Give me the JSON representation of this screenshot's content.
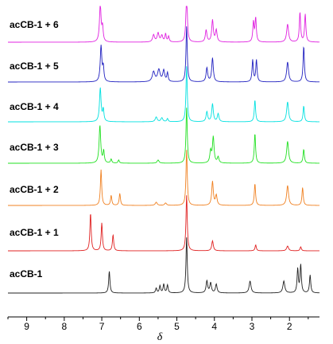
{
  "chart_data": {
    "type": "line",
    "title": "",
    "xlabel": "δ",
    "ylabel": "",
    "x_reversed": true,
    "xlim": [
      9.5,
      1.2
    ],
    "x_ticks": [
      "9",
      "8",
      "7",
      "6",
      "5",
      "4",
      "3",
      "2"
    ],
    "x_tick_values": [
      9,
      8,
      7,
      6,
      5,
      4,
      3,
      2
    ],
    "grid": false,
    "series": [
      {
        "name": "acCB-1 + 6",
        "color": "#e020e0",
        "peaks": [
          {
            "ppm": 7.04,
            "intensity": 0.95,
            "width": 0.025
          },
          {
            "ppm": 6.98,
            "intensity": 0.35,
            "width": 0.02
          },
          {
            "ppm": 5.62,
            "intensity": 0.18,
            "width": 0.03
          },
          {
            "ppm": 5.5,
            "intensity": 0.22,
            "width": 0.03
          },
          {
            "ppm": 5.4,
            "intensity": 0.16,
            "width": 0.03
          },
          {
            "ppm": 5.3,
            "intensity": 0.2,
            "width": 0.02
          },
          {
            "ppm": 5.22,
            "intensity": 0.14,
            "width": 0.02
          },
          {
            "ppm": 4.74,
            "intensity": 1.4,
            "width": 0.02
          },
          {
            "ppm": 4.22,
            "intensity": 0.3,
            "width": 0.025
          },
          {
            "ppm": 4.05,
            "intensity": 0.55,
            "width": 0.025
          },
          {
            "ppm": 3.95,
            "intensity": 0.3,
            "width": 0.025
          },
          {
            "ppm": 2.96,
            "intensity": 0.5,
            "width": 0.02
          },
          {
            "ppm": 2.9,
            "intensity": 0.6,
            "width": 0.02
          },
          {
            "ppm": 2.05,
            "intensity": 0.45,
            "width": 0.03
          },
          {
            "ppm": 1.72,
            "intensity": 0.75,
            "width": 0.02
          },
          {
            "ppm": 1.58,
            "intensity": 0.7,
            "width": 0.02
          }
        ]
      },
      {
        "name": "acCB-1 + 5",
        "color": "#2020c0",
        "peaks": [
          {
            "ppm": 7.02,
            "intensity": 0.9,
            "width": 0.025
          },
          {
            "ppm": 6.96,
            "intensity": 0.35,
            "width": 0.02
          },
          {
            "ppm": 5.62,
            "intensity": 0.25,
            "width": 0.04
          },
          {
            "ppm": 5.48,
            "intensity": 0.3,
            "width": 0.04
          },
          {
            "ppm": 5.35,
            "intensity": 0.28,
            "width": 0.03
          },
          {
            "ppm": 5.25,
            "intensity": 0.22,
            "width": 0.02
          },
          {
            "ppm": 4.74,
            "intensity": 1.4,
            "width": 0.02
          },
          {
            "ppm": 4.2,
            "intensity": 0.35,
            "width": 0.025
          },
          {
            "ppm": 4.05,
            "intensity": 0.6,
            "width": 0.025
          },
          {
            "ppm": 2.98,
            "intensity": 0.55,
            "width": 0.02
          },
          {
            "ppm": 2.88,
            "intensity": 0.55,
            "width": 0.02
          },
          {
            "ppm": 2.05,
            "intensity": 0.5,
            "width": 0.03
          },
          {
            "ppm": 1.62,
            "intensity": 0.9,
            "width": 0.02
          }
        ]
      },
      {
        "name": "acCB-1 + 4",
        "color": "#00e0e0",
        "peaks": [
          {
            "ppm": 7.04,
            "intensity": 0.85,
            "width": 0.025
          },
          {
            "ppm": 6.96,
            "intensity": 0.3,
            "width": 0.02
          },
          {
            "ppm": 5.55,
            "intensity": 0.12,
            "width": 0.03
          },
          {
            "ppm": 5.4,
            "intensity": 0.1,
            "width": 0.03
          },
          {
            "ppm": 5.25,
            "intensity": 0.08,
            "width": 0.02
          },
          {
            "ppm": 4.74,
            "intensity": 1.4,
            "width": 0.02
          },
          {
            "ppm": 4.2,
            "intensity": 0.25,
            "width": 0.025
          },
          {
            "ppm": 4.05,
            "intensity": 0.45,
            "width": 0.025
          },
          {
            "ppm": 3.9,
            "intensity": 0.2,
            "width": 0.025
          },
          {
            "ppm": 2.92,
            "intensity": 0.55,
            "width": 0.02
          },
          {
            "ppm": 2.05,
            "intensity": 0.5,
            "width": 0.03
          },
          {
            "ppm": 1.62,
            "intensity": 0.4,
            "width": 0.02
          }
        ]
      },
      {
        "name": "acCB-1 + 3",
        "color": "#20e020",
        "peaks": [
          {
            "ppm": 7.05,
            "intensity": 0.95,
            "width": 0.025
          },
          {
            "ppm": 6.95,
            "intensity": 0.3,
            "width": 0.02
          },
          {
            "ppm": 6.75,
            "intensity": 0.1,
            "width": 0.02
          },
          {
            "ppm": 6.55,
            "intensity": 0.08,
            "width": 0.02
          },
          {
            "ppm": 5.5,
            "intensity": 0.08,
            "width": 0.03
          },
          {
            "ppm": 4.74,
            "intensity": 1.4,
            "width": 0.02
          },
          {
            "ppm": 4.1,
            "intensity": 0.3,
            "width": 0.025
          },
          {
            "ppm": 4.03,
            "intensity": 0.65,
            "width": 0.025
          },
          {
            "ppm": 3.9,
            "intensity": 0.15,
            "width": 0.025
          },
          {
            "ppm": 2.92,
            "intensity": 0.75,
            "width": 0.02
          },
          {
            "ppm": 2.05,
            "intensity": 0.55,
            "width": 0.03
          },
          {
            "ppm": 1.62,
            "intensity": 0.35,
            "width": 0.02
          }
        ]
      },
      {
        "name": "acCB-1 + 2",
        "color": "#f08020",
        "peaks": [
          {
            "ppm": 7.02,
            "intensity": 0.9,
            "width": 0.02
          },
          {
            "ppm": 6.75,
            "intensity": 0.25,
            "width": 0.02
          },
          {
            "ppm": 6.52,
            "intensity": 0.3,
            "width": 0.02
          },
          {
            "ppm": 5.55,
            "intensity": 0.08,
            "width": 0.03
          },
          {
            "ppm": 5.3,
            "intensity": 0.06,
            "width": 0.03
          },
          {
            "ppm": 4.74,
            "intensity": 1.4,
            "width": 0.02
          },
          {
            "ppm": 4.05,
            "intensity": 0.6,
            "width": 0.025
          },
          {
            "ppm": 3.95,
            "intensity": 0.25,
            "width": 0.025
          },
          {
            "ppm": 2.92,
            "intensity": 0.55,
            "width": 0.02
          },
          {
            "ppm": 2.05,
            "intensity": 0.5,
            "width": 0.03
          },
          {
            "ppm": 1.65,
            "intensity": 0.45,
            "width": 0.02
          }
        ]
      },
      {
        "name": "acCB-1 + 1",
        "color": "#e02020",
        "peaks": [
          {
            "ppm": 7.3,
            "intensity": 0.95,
            "width": 0.02
          },
          {
            "ppm": 7.0,
            "intensity": 0.7,
            "width": 0.02
          },
          {
            "ppm": 6.7,
            "intensity": 0.4,
            "width": 0.02
          },
          {
            "ppm": 4.74,
            "intensity": 1.4,
            "width": 0.02
          },
          {
            "ppm": 4.05,
            "intensity": 0.25,
            "width": 0.025
          },
          {
            "ppm": 2.9,
            "intensity": 0.15,
            "width": 0.02
          },
          {
            "ppm": 2.05,
            "intensity": 0.12,
            "width": 0.03
          },
          {
            "ppm": 1.7,
            "intensity": 0.1,
            "width": 0.02
          }
        ]
      },
      {
        "name": "acCB-1",
        "color": "#202020",
        "peaks": [
          {
            "ppm": 6.8,
            "intensity": 0.55,
            "width": 0.02
          },
          {
            "ppm": 5.55,
            "intensity": 0.12,
            "width": 0.02
          },
          {
            "ppm": 5.45,
            "intensity": 0.18,
            "width": 0.02
          },
          {
            "ppm": 5.35,
            "intensity": 0.22,
            "width": 0.02
          },
          {
            "ppm": 5.25,
            "intensity": 0.2,
            "width": 0.02
          },
          {
            "ppm": 4.74,
            "intensity": 1.4,
            "width": 0.02
          },
          {
            "ppm": 4.2,
            "intensity": 0.3,
            "width": 0.025
          },
          {
            "ppm": 4.1,
            "intensity": 0.25,
            "width": 0.025
          },
          {
            "ppm": 3.95,
            "intensity": 0.22,
            "width": 0.025
          },
          {
            "ppm": 3.05,
            "intensity": 0.3,
            "width": 0.03
          },
          {
            "ppm": 2.15,
            "intensity": 0.3,
            "width": 0.03
          },
          {
            "ppm": 1.78,
            "intensity": 0.6,
            "width": 0.02
          },
          {
            "ppm": 1.7,
            "intensity": 0.7,
            "width": 0.02
          },
          {
            "ppm": 1.45,
            "intensity": 0.45,
            "width": 0.02
          }
        ]
      }
    ]
  }
}
